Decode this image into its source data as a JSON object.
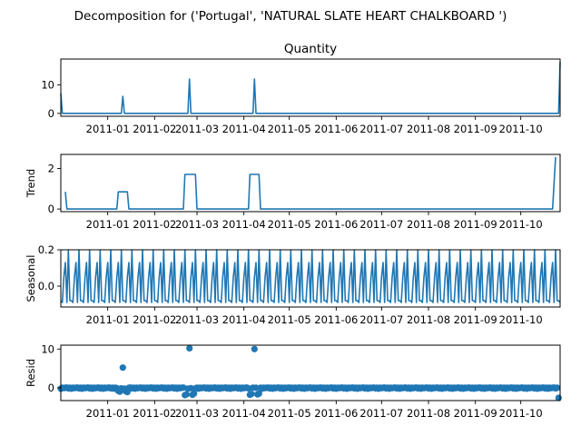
{
  "title": "Decomposition for ('Portugal', 'NATURAL SLATE HEART CHALKBOARD ')",
  "chart_data": [
    {
      "type": "line",
      "panel": "observed",
      "title": "Quantity",
      "ylabel": "",
      "x_range": [
        "2010-12-01",
        "2011-10-27"
      ],
      "ylim": [
        -1,
        19
      ],
      "yticks": [
        0,
        10
      ],
      "xticks": [
        "2011-01",
        "2011-02",
        "2011-03",
        "2011-04",
        "2011-05",
        "2011-06",
        "2011-07",
        "2011-08",
        "2011-09",
        "2011-10"
      ],
      "points": [
        {
          "x": "2010-12-01",
          "y": 7
        },
        {
          "x": "2010-12-02",
          "y": 0
        },
        {
          "x": "2011-01-10",
          "y": 0
        },
        {
          "x": "2011-01-11",
          "y": 6
        },
        {
          "x": "2011-01-12",
          "y": 0
        },
        {
          "x": "2011-02-23",
          "y": 0
        },
        {
          "x": "2011-02-24",
          "y": 12
        },
        {
          "x": "2011-02-25",
          "y": 0
        },
        {
          "x": "2011-04-07",
          "y": 0
        },
        {
          "x": "2011-04-08",
          "y": 12
        },
        {
          "x": "2011-04-09",
          "y": 0
        },
        {
          "x": "2011-10-26",
          "y": 0
        },
        {
          "x": "2011-10-27",
          "y": 18
        }
      ]
    },
    {
      "type": "line",
      "panel": "trend",
      "title": "",
      "ylabel": "Trend",
      "x_range": [
        "2010-12-01",
        "2011-10-27"
      ],
      "ylim": [
        -0.13,
        2.7
      ],
      "yticks": [
        0,
        2
      ],
      "xticks": [
        "2011-01",
        "2011-02",
        "2011-03",
        "2011-04",
        "2011-05",
        "2011-06",
        "2011-07",
        "2011-08",
        "2011-09",
        "2011-10"
      ],
      "points": [
        {
          "x": "2010-12-04",
          "y": 0.85
        },
        {
          "x": "2010-12-05",
          "y": 0
        },
        {
          "x": "2011-01-07",
          "y": 0
        },
        {
          "x": "2011-01-08",
          "y": 0.85
        },
        {
          "x": "2011-01-14",
          "y": 0.85
        },
        {
          "x": "2011-01-15",
          "y": 0
        },
        {
          "x": "2011-02-20",
          "y": 0
        },
        {
          "x": "2011-02-21",
          "y": 1.71
        },
        {
          "x": "2011-02-28",
          "y": 1.71
        },
        {
          "x": "2011-03-01",
          "y": 0
        },
        {
          "x": "2011-04-04",
          "y": 0
        },
        {
          "x": "2011-04-05",
          "y": 1.71
        },
        {
          "x": "2011-04-11",
          "y": 1.71
        },
        {
          "x": "2011-04-12",
          "y": 0
        },
        {
          "x": "2011-10-22",
          "y": 0
        },
        {
          "x": "2011-10-24",
          "y": 2.57
        }
      ]
    },
    {
      "type": "line",
      "panel": "seasonal",
      "title": "",
      "ylabel": "Seasonal",
      "x_range": [
        "2010-12-01",
        "2011-10-27"
      ],
      "ylim": [
        -0.115,
        0.2
      ],
      "yticks": [
        0.0,
        0.2
      ],
      "ytick_labels": [
        "0.0",
        "0.2"
      ],
      "xticks": [
        "2011-01",
        "2011-02",
        "2011-03",
        "2011-04",
        "2011-05",
        "2011-06",
        "2011-07",
        "2011-08",
        "2011-09",
        "2011-10"
      ],
      "period": 7,
      "pattern": [
        -0.08,
        -0.09,
        0.05,
        0.13,
        -0.09,
        0.2,
        -0.08
      ],
      "start": "2010-12-01",
      "end": "2011-10-27"
    },
    {
      "type": "scatter",
      "panel": "resid",
      "title": "",
      "ylabel": "Resid",
      "x_range": [
        "2010-12-01",
        "2011-10-27"
      ],
      "ylim": [
        -3.3,
        11
      ],
      "yticks": [
        0,
        10
      ],
      "xticks": [
        "2011-01",
        "2011-02",
        "2011-03",
        "2011-04",
        "2011-05",
        "2011-06",
        "2011-07",
        "2011-08",
        "2011-09",
        "2011-10"
      ],
      "baseline": 0,
      "noise": [
        -0.8,
        0.1,
        -0.3,
        0.0,
        0.2,
        -0.5,
        0.0
      ],
      "start": "2010-12-01",
      "end": "2011-10-26",
      "points": [
        {
          "x": "2011-01-08",
          "y": -0.8
        },
        {
          "x": "2011-01-09",
          "y": -1.0
        },
        {
          "x": "2011-01-11",
          "y": 5.2
        },
        {
          "x": "2011-01-13",
          "y": -0.9
        },
        {
          "x": "2011-01-14",
          "y": -1.1
        },
        {
          "x": "2011-02-21",
          "y": -1.9
        },
        {
          "x": "2011-02-22",
          "y": -1.7
        },
        {
          "x": "2011-02-24",
          "y": 10.2
        },
        {
          "x": "2011-02-26",
          "y": -1.8
        },
        {
          "x": "2011-02-27",
          "y": -1.5
        },
        {
          "x": "2011-04-05",
          "y": -1.8
        },
        {
          "x": "2011-04-06",
          "y": -1.6
        },
        {
          "x": "2011-04-08",
          "y": 10.0
        },
        {
          "x": "2011-04-10",
          "y": -1.7
        },
        {
          "x": "2011-04-11",
          "y": -1.5
        },
        {
          "x": "2011-10-26",
          "y": -2.6
        }
      ]
    }
  ]
}
